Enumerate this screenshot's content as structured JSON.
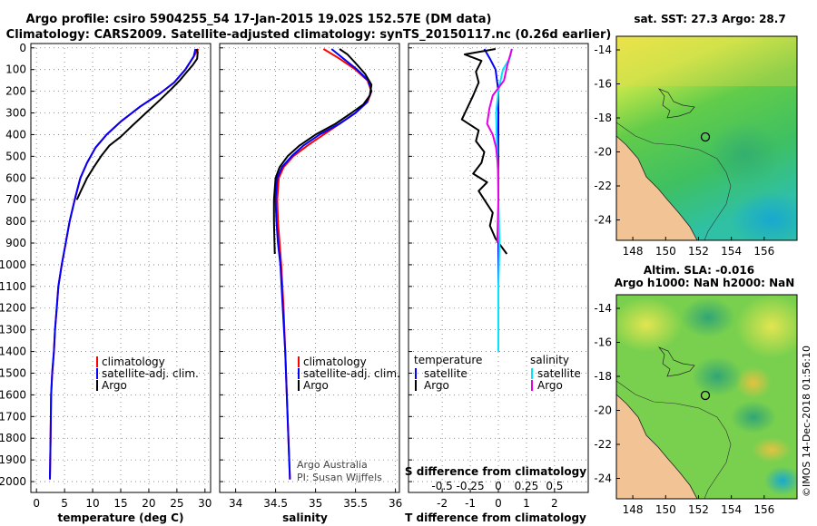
{
  "title": {
    "line1": "Argo profile: csiro 5904255_54 17-Jan-2015 19.02S 152.57E (DM data)",
    "line2": "Climatology: CARS2009. Satellite-adjusted climatology: synTS_20150117.nc (0.26d earlier)"
  },
  "colors": {
    "climatology": "#ff0000",
    "satellite": "#0000ff",
    "argo": "#000000",
    "sat_salinity": "#00e5ff",
    "argo_salinity": "#e600e6"
  },
  "credits": {
    "line1": "Argo Australia",
    "line2": "PI: Susan Wijffels"
  },
  "watermark": "©IMOS 14-Dec-2018 01:56:10",
  "depth_ticks": [
    "0",
    "100",
    "200",
    "300",
    "400",
    "500",
    "600",
    "700",
    "800",
    "900",
    "1000",
    "1100",
    "1200",
    "1300",
    "1400",
    "1500",
    "1600",
    "1700",
    "1800",
    "1900",
    "2000"
  ],
  "legends": {
    "temperature": [
      "climatology",
      "satellite-adj. clim.",
      "Argo"
    ],
    "salinity": [
      "climatology",
      "satellite-adj. clim.",
      "Argo"
    ],
    "difference": {
      "temperature_header": "temperature",
      "salinity_header": "salinity",
      "t_items": [
        "satellite",
        "Argo"
      ],
      "s_items": [
        "satellite",
        "Argo"
      ]
    }
  },
  "chart_data": [
    {
      "type": "line",
      "title": "",
      "xlabel": "temperature (deg C)",
      "ylabel": "",
      "xlim": [
        -1,
        31
      ],
      "ylim": [
        2050,
        -20
      ],
      "xticks": [
        "0",
        "5",
        "10",
        "15",
        "20",
        "25",
        "30"
      ],
      "series": [
        {
          "name": "climatology",
          "color": "#ff0000",
          "x": [
            28.8,
            28.0,
            26.5,
            24.5,
            22.0,
            18.5,
            15.0,
            12.5,
            10.5,
            9.0,
            7.8,
            6.8,
            5.9,
            5.2,
            4.5,
            3.9,
            3.6,
            3.3,
            3.1,
            2.8,
            2.6,
            2.5,
            2.4
          ],
          "y": [
            5,
            40,
            100,
            160,
            210,
            270,
            340,
            400,
            460,
            530,
            600,
            700,
            800,
            900,
            1000,
            1100,
            1200,
            1300,
            1400,
            1500,
            1600,
            1800,
            1990
          ]
        },
        {
          "name": "satellite-adj. clim.",
          "color": "#0000ff",
          "x": [
            28.3,
            28.0,
            26.5,
            24.5,
            22.0,
            18.5,
            15.0,
            12.5,
            10.5,
            9.0,
            7.8,
            6.8,
            5.9,
            5.2,
            4.5,
            3.9,
            3.6,
            3.3,
            3.1,
            2.8,
            2.6,
            2.5,
            2.4
          ],
          "y": [
            5,
            40,
            100,
            160,
            210,
            270,
            340,
            400,
            460,
            530,
            600,
            700,
            800,
            900,
            1000,
            1100,
            1200,
            1300,
            1400,
            1500,
            1600,
            1800,
            1990
          ]
        },
        {
          "name": "Argo",
          "color": "#000000",
          "x": [
            28.5,
            28.7,
            28.6,
            27.8,
            26.8,
            25.5,
            24.0,
            22.0,
            19.5,
            17.0,
            15.0,
            13.0,
            11.5,
            10.2,
            9.0,
            7.9,
            7.2
          ],
          "y": [
            5,
            20,
            50,
            80,
            110,
            150,
            190,
            240,
            300,
            360,
            410,
            450,
            500,
            550,
            600,
            660,
            700
          ]
        }
      ]
    },
    {
      "type": "line",
      "title": "",
      "xlabel": "salinity",
      "ylabel": "",
      "xlim": [
        33.8,
        36.05
      ],
      "ylim": [
        2050,
        -20
      ],
      "xticks": [
        "34",
        "34.5",
        "35",
        "35.5",
        "36"
      ],
      "series": [
        {
          "name": "climatology",
          "color": "#ff0000",
          "x": [
            35.1,
            35.3,
            35.5,
            35.65,
            35.7,
            35.65,
            35.5,
            35.3,
            35.1,
            34.9,
            34.72,
            34.6,
            34.54,
            34.52,
            34.53,
            34.55,
            34.57,
            34.6,
            34.62,
            34.65,
            34.68
          ],
          "y": [
            5,
            50,
            100,
            150,
            200,
            250,
            300,
            350,
            400,
            450,
            500,
            550,
            600,
            700,
            800,
            900,
            1000,
            1200,
            1400,
            1700,
            1990
          ]
        },
        {
          "name": "satellite-adj. clim.",
          "color": "#0000ff",
          "x": [
            35.2,
            35.35,
            35.52,
            35.66,
            35.7,
            35.64,
            35.5,
            35.3,
            35.05,
            34.85,
            34.7,
            34.58,
            34.52,
            34.5,
            34.51,
            34.53,
            34.56,
            34.59,
            34.62,
            34.65,
            34.68
          ],
          "y": [
            5,
            50,
            100,
            150,
            200,
            250,
            300,
            350,
            400,
            450,
            500,
            550,
            600,
            700,
            800,
            900,
            1000,
            1200,
            1400,
            1700,
            1990
          ]
        },
        {
          "name": "Argo",
          "color": "#000000",
          "x": [
            35.3,
            35.4,
            35.5,
            35.62,
            35.7,
            35.68,
            35.6,
            35.45,
            35.25,
            35.0,
            34.8,
            34.65,
            34.55,
            34.5,
            34.48,
            34.48,
            34.49
          ],
          "y": [
            5,
            30,
            70,
            120,
            170,
            220,
            260,
            300,
            350,
            400,
            450,
            500,
            550,
            600,
            700,
            800,
            950
          ]
        }
      ]
    },
    {
      "type": "line",
      "title": "",
      "xlabel": "T difference from climatology",
      "ylabel": "",
      "xlim": [
        -3.2,
        3.2
      ],
      "ylim": [
        2050,
        -20
      ],
      "xticks": [
        "-2",
        "-1",
        "0",
        "1",
        "2"
      ],
      "secondary_xaxis": {
        "label": "S difference from climatology",
        "ticks": [
          "-0.5",
          "-0.25",
          "0",
          "0.25",
          "0.5"
        ],
        "lim": [
          -0.8,
          0.8
        ]
      },
      "series": [
        {
          "name": "satellite (temperature)",
          "color": "#0000ff",
          "x": [
            -0.5,
            -0.3,
            -0.1,
            0.0,
            0.0,
            0.0,
            0.0,
            0.0,
            0.0,
            0.0,
            0.0,
            0.0
          ],
          "y": [
            5,
            50,
            100,
            200,
            300,
            500,
            700,
            900,
            1100,
            1200,
            1300,
            1400
          ]
        },
        {
          "name": "Argo (temperature)",
          "color": "#000000",
          "x": [
            -0.1,
            -1.2,
            -0.6,
            -0.8,
            -0.7,
            -0.9,
            -1.3,
            -0.7,
            -0.8,
            -0.5,
            -0.6,
            -0.9,
            -0.4,
            -0.7,
            -0.5,
            -0.2,
            -0.3,
            -0.1,
            0.3
          ],
          "y": [
            5,
            30,
            60,
            110,
            160,
            220,
            330,
            380,
            430,
            480,
            530,
            580,
            620,
            660,
            700,
            760,
            820,
            880,
            950
          ]
        },
        {
          "name": "satellite (salinity)",
          "color": "#00e5ff",
          "x": [
            0.12,
            0.1,
            0.04,
            0.0,
            -0.02,
            -0.01,
            0.0,
            0.01,
            0.0,
            0.0,
            0.0,
            0.0
          ],
          "y": [
            5,
            50,
            100,
            200,
            300,
            500,
            700,
            900,
            1100,
            1200,
            1300,
            1400
          ]
        },
        {
          "name": "Argo (salinity)",
          "color": "#e600e6",
          "x": [
            0.12,
            0.08,
            0.05,
            -0.05,
            -0.08,
            -0.1,
            -0.05,
            -0.02,
            0.0,
            0.0,
            -0.01
          ],
          "y": [
            5,
            80,
            150,
            220,
            280,
            350,
            400,
            460,
            560,
            700,
            900
          ]
        }
      ]
    },
    {
      "type": "heatmap",
      "title": "sat. SST: 27.3 Argo: 28.7",
      "xlabel": "",
      "ylabel": "",
      "xlim": [
        147,
        158
      ],
      "ylim": [
        -25.2,
        -13.2
      ],
      "xticks": [
        "148",
        "150",
        "152",
        "154",
        "156"
      ],
      "yticks": [
        "-14",
        "-16",
        "-18",
        "-20",
        "-22",
        "-24"
      ],
      "float_position": {
        "lon": 152.57,
        "lat": -19.02
      }
    },
    {
      "type": "heatmap",
      "title": "Altim. SLA: -0.016",
      "subtitle": "Argo h1000: NaN h2000: NaN",
      "xlabel": "",
      "ylabel": "",
      "xlim": [
        147,
        158
      ],
      "ylim": [
        -25.2,
        -13.2
      ],
      "xticks": [
        "148",
        "150",
        "152",
        "154",
        "156"
      ],
      "yticks": [
        "-14",
        "-16",
        "-18",
        "-20",
        "-22",
        "-24"
      ],
      "float_position": {
        "lon": 152.57,
        "lat": -19.02
      }
    }
  ]
}
